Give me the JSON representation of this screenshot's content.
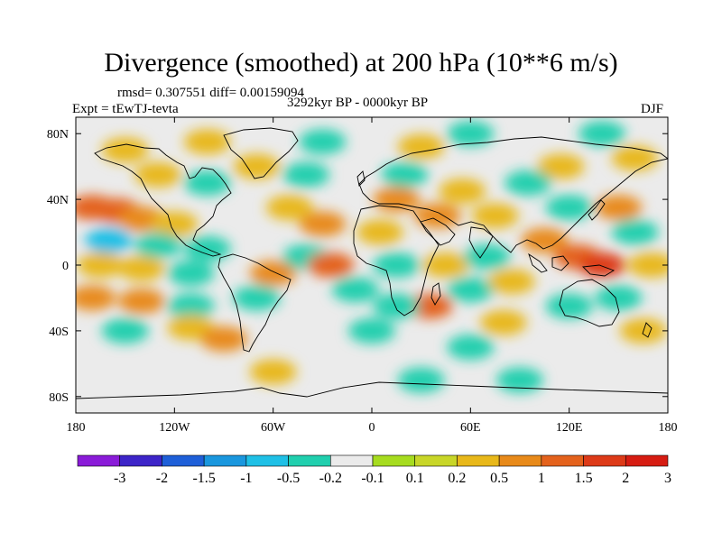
{
  "title": "Divergence (smoothed) at 200 hPa (10**6 m/s)",
  "stats": "rmsd= 0.307551 diff= 0.00159094",
  "experiment": "Expt = tEwTJ-tevta",
  "period": "3292kyr BP - 0000kyr BP",
  "season": "DJF",
  "map": {
    "lon_range": [
      -180,
      180
    ],
    "lat_range": [
      -90,
      90
    ],
    "x_ticks": [
      {
        "lon": -180,
        "label": "180"
      },
      {
        "lon": -120,
        "label": "120W"
      },
      {
        "lon": -60,
        "label": "60W"
      },
      {
        "lon": 0,
        "label": "0"
      },
      {
        "lon": 60,
        "label": "60E"
      },
      {
        "lon": 120,
        "label": "120E"
      },
      {
        "lon": 180,
        "label": "180"
      }
    ],
    "y_ticks": [
      {
        "lat": 80,
        "label": "80N"
      },
      {
        "lat": 40,
        "label": "40N"
      },
      {
        "lat": 0,
        "label": "0"
      },
      {
        "lat": -40,
        "label": "40S"
      },
      {
        "lat": -80,
        "label": "80S"
      }
    ]
  },
  "colorbar": {
    "labels": [
      "-3",
      "-2",
      "-1.5",
      "-1",
      "-0.5",
      "-0.2",
      "-0.1",
      "0.1",
      "0.2",
      "0.5",
      "1",
      "1.5",
      "2",
      "3"
    ],
    "colors": [
      "#8a1bd8",
      "#3d24c8",
      "#1e5fd8",
      "#1a97de",
      "#1fc0e6",
      "#20cfae",
      "#ebebeb",
      "#a6dc1f",
      "#c8d628",
      "#e8b81a",
      "#e88a1a",
      "#e4621c",
      "#dd3a18",
      "#d61c12"
    ]
  },
  "field_cells": [
    {
      "lon": -170,
      "lat": 35,
      "v": 1.2
    },
    {
      "lon": -155,
      "lat": 33,
      "v": 1.0
    },
    {
      "lon": -140,
      "lat": 28,
      "v": 0.7
    },
    {
      "lon": -120,
      "lat": 25,
      "v": 0.4
    },
    {
      "lon": -160,
      "lat": 15,
      "v": -0.6
    },
    {
      "lon": -130,
      "lat": 12,
      "v": -0.5
    },
    {
      "lon": -100,
      "lat": 10,
      "v": -0.4
    },
    {
      "lon": -165,
      "lat": 0,
      "v": 0.3
    },
    {
      "lon": -140,
      "lat": -2,
      "v": 0.25
    },
    {
      "lon": -110,
      "lat": -5,
      "v": -0.3
    },
    {
      "lon": -170,
      "lat": -20,
      "v": 0.6
    },
    {
      "lon": -140,
      "lat": -22,
      "v": 0.5
    },
    {
      "lon": -110,
      "lat": -25,
      "v": -0.4
    },
    {
      "lon": -150,
      "lat": -40,
      "v": -0.3
    },
    {
      "lon": -110,
      "lat": -38,
      "v": 0.3
    },
    {
      "lon": -90,
      "lat": -45,
      "v": 0.5
    },
    {
      "lon": -70,
      "lat": -20,
      "v": -0.5
    },
    {
      "lon": -60,
      "lat": -5,
      "v": 0.5
    },
    {
      "lon": -40,
      "lat": 5,
      "v": -0.5
    },
    {
      "lon": -25,
      "lat": 0,
      "v": 1.0
    },
    {
      "lon": -30,
      "lat": 25,
      "v": 0.5
    },
    {
      "lon": -50,
      "lat": 35,
      "v": 0.4
    },
    {
      "lon": -40,
      "lat": 55,
      "v": -0.5
    },
    {
      "lon": -70,
      "lat": 60,
      "v": 0.3
    },
    {
      "lon": -100,
      "lat": 50,
      "v": -0.4
    },
    {
      "lon": -130,
      "lat": 55,
      "v": 0.3
    },
    {
      "lon": -150,
      "lat": 70,
      "v": 0.25
    },
    {
      "lon": -100,
      "lat": 75,
      "v": 0.3
    },
    {
      "lon": -30,
      "lat": 75,
      "v": -0.3
    },
    {
      "lon": 30,
      "lat": 72,
      "v": 0.3
    },
    {
      "lon": 60,
      "lat": 80,
      "v": -0.3
    },
    {
      "lon": 20,
      "lat": 55,
      "v": -0.4
    },
    {
      "lon": 55,
      "lat": 45,
      "v": 0.4
    },
    {
      "lon": 40,
      "lat": 30,
      "v": 0.5
    },
    {
      "lon": 75,
      "lat": 30,
      "v": 0.4
    },
    {
      "lon": 5,
      "lat": 20,
      "v": 0.4
    },
    {
      "lon": 15,
      "lat": 0,
      "v": -0.3
    },
    {
      "lon": 45,
      "lat": 0,
      "v": 0.4
    },
    {
      "lon": 35,
      "lat": -25,
      "v": 1.0
    },
    {
      "lon": 15,
      "lat": -25,
      "v": -0.4
    },
    {
      "lon": 60,
      "lat": -15,
      "v": -0.3
    },
    {
      "lon": 70,
      "lat": 5,
      "v": -0.3
    },
    {
      "lon": 80,
      "lat": -35,
      "v": 0.4
    },
    {
      "lon": 105,
      "lat": 15,
      "v": 0.5
    },
    {
      "lon": 125,
      "lat": 5,
      "v": 1.3
    },
    {
      "lon": 140,
      "lat": 0,
      "v": 1.6
    },
    {
      "lon": 120,
      "lat": 35,
      "v": -0.5
    },
    {
      "lon": 150,
      "lat": 35,
      "v": 0.5
    },
    {
      "lon": 160,
      "lat": 20,
      "v": -0.4
    },
    {
      "lon": 170,
      "lat": 0,
      "v": 0.4
    },
    {
      "lon": 150,
      "lat": -20,
      "v": -0.5
    },
    {
      "lon": 120,
      "lat": -25,
      "v": -0.3
    },
    {
      "lon": 165,
      "lat": -40,
      "v": 0.3
    },
    {
      "lon": 115,
      "lat": 60,
      "v": 0.3
    },
    {
      "lon": 160,
      "lat": 65,
      "v": 0.4
    },
    {
      "lon": 140,
      "lat": 80,
      "v": -0.3
    },
    {
      "lon": 60,
      "lat": -50,
      "v": -0.3
    },
    {
      "lon": 0,
      "lat": -40,
      "v": -0.3
    },
    {
      "lon": 30,
      "lat": -70,
      "v": -0.4
    },
    {
      "lon": 90,
      "lat": -70,
      "v": -0.3
    },
    {
      "lon": -60,
      "lat": -65,
      "v": 0.25
    },
    {
      "lon": 15,
      "lat": 40,
      "v": 0.5
    },
    {
      "lon": 95,
      "lat": 50,
      "v": -0.3
    },
    {
      "lon": 85,
      "lat": -10,
      "v": 0.3
    },
    {
      "lon": -10,
      "lat": -15,
      "v": -0.3
    }
  ]
}
